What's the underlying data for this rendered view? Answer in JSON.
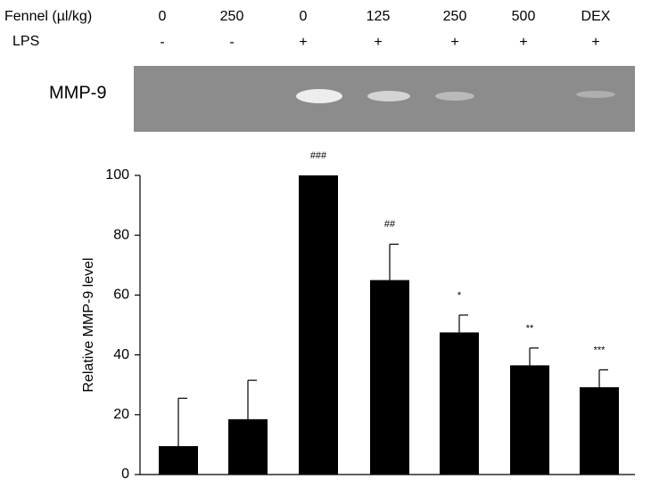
{
  "chart_data": {
    "type": "bar",
    "treatment_label": "Fennel (µl/kg)",
    "categories": [
      "0",
      "250",
      "0",
      "125",
      "250",
      "500",
      "DEX"
    ],
    "lps_label": "LPS",
    "lps": [
      "-",
      "-",
      "+",
      "+",
      "+",
      "+",
      "+"
    ],
    "blot_label": "MMP-9",
    "ylabel": "Relative MMP-9 level",
    "values": [
      9.5,
      18.5,
      100,
      65,
      47.5,
      36.5,
      29.2
    ],
    "errors": [
      16,
      13,
      null,
      12,
      5.8,
      5.8,
      5.8
    ],
    "significance": [
      null,
      null,
      "###",
      "##",
      "*",
      "**",
      "***"
    ],
    "color": "#000000",
    "ylim": [
      0,
      100
    ],
    "yticks": [
      0,
      20,
      40,
      60,
      80,
      100
    ]
  }
}
